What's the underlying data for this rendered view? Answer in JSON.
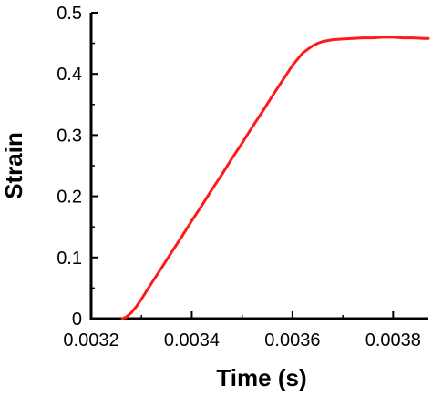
{
  "chart_data": {
    "type": "line",
    "title": "",
    "xlabel": "Time (s)",
    "ylabel": "Strain",
    "xlim": [
      0.0032,
      0.00387
    ],
    "ylim": [
      0,
      0.5
    ],
    "xticks": [
      0.0032,
      0.0034,
      0.0036,
      0.0038
    ],
    "xtick_labels": [
      "0.0032",
      "0.0034",
      "0.0036",
      "0.0038"
    ],
    "yticks": [
      0,
      0.1,
      0.2,
      0.3,
      0.4,
      0.5
    ],
    "ytick_labels": [
      "0",
      "0.1",
      "0.2",
      "0.3",
      "0.4",
      "0.5"
    ],
    "grid": false,
    "series": [
      {
        "color": "#ff1a1a",
        "x": [
          0.003262,
          0.00327,
          0.00328,
          0.00329,
          0.0033,
          0.00332,
          0.00334,
          0.00336,
          0.00338,
          0.0034,
          0.00342,
          0.00344,
          0.00346,
          0.00348,
          0.0035,
          0.00352,
          0.00354,
          0.00356,
          0.00358,
          0.0036,
          0.00362,
          0.00364,
          0.00365,
          0.00366,
          0.00368,
          0.0037,
          0.00372,
          0.00374,
          0.00376,
          0.00378,
          0.0038,
          0.00382,
          0.00384,
          0.00386,
          0.00387
        ],
        "y": [
          0.0,
          0.003,
          0.01,
          0.02,
          0.032,
          0.058,
          0.083,
          0.109,
          0.134,
          0.16,
          0.185,
          0.211,
          0.236,
          0.262,
          0.287,
          0.313,
          0.338,
          0.364,
          0.389,
          0.414,
          0.434,
          0.446,
          0.45,
          0.453,
          0.456,
          0.457,
          0.458,
          0.459,
          0.459,
          0.46,
          0.46,
          0.459,
          0.459,
          0.458,
          0.458
        ]
      }
    ]
  }
}
